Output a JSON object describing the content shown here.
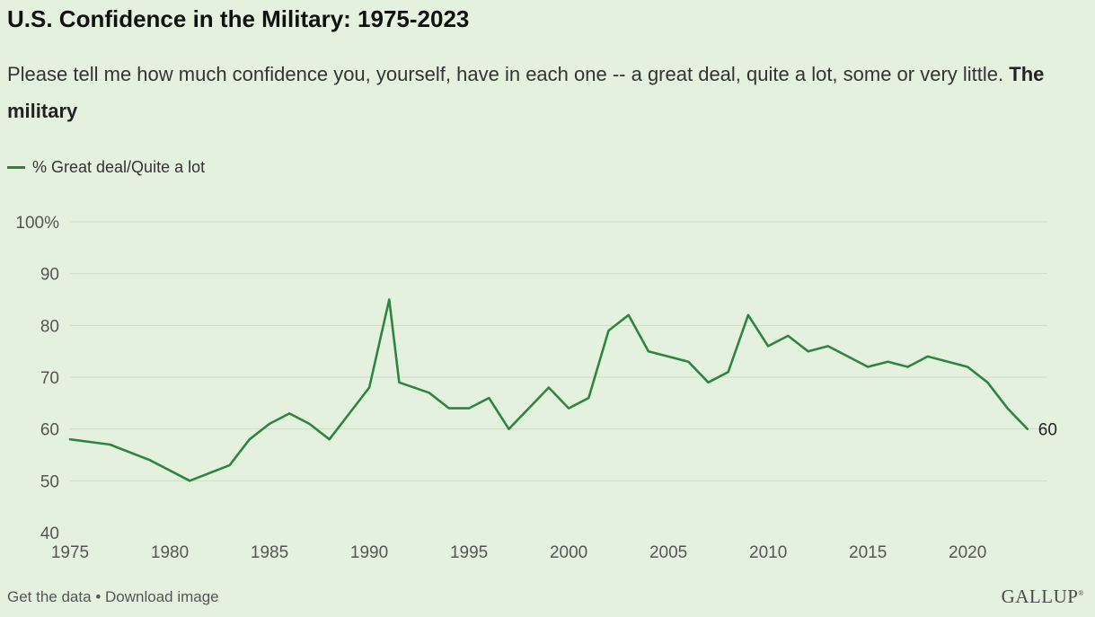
{
  "header": {
    "title": "U.S. Confidence in the Military: 1975-2023",
    "question": "Please tell me how much confidence you, yourself, have in each one -- a great deal, quite a lot, some or very little.",
    "question_bold": "The military"
  },
  "colors": {
    "line": "#2e8540",
    "grid": "#cfdcc8",
    "axis_text": "#555555",
    "background": "#e5f1df"
  },
  "footer": {
    "get_data": "Get the data",
    "separator": "•",
    "download": "Download image",
    "logo": "GALLUP"
  },
  "chart_data": {
    "type": "line",
    "title": "U.S. Confidence in the Military: 1975-2023",
    "xlabel": "",
    "ylabel": "",
    "xlim": [
      1975,
      2024
    ],
    "ylim": [
      40,
      100
    ],
    "x_ticks": [
      1975,
      1980,
      1985,
      1990,
      1995,
      2000,
      2005,
      2010,
      2015,
      2020
    ],
    "y_ticks": [
      40,
      50,
      60,
      70,
      80,
      90,
      100
    ],
    "y_tick_labels": [
      "40",
      "50",
      "60",
      "70",
      "80",
      "90",
      "100%"
    ],
    "grid": true,
    "legend_position": "top-left",
    "series": [
      {
        "name": "% Great deal/Quite a lot",
        "x": [
          1975,
          1977,
          1979,
          1981,
          1983,
          1984,
          1985,
          1986,
          1987,
          1988,
          1990,
          1991,
          1991.5,
          1993,
          1994,
          1995,
          1996,
          1997,
          1999,
          2000,
          2001,
          2002,
          2003,
          2004,
          2006,
          2007,
          2008,
          2009,
          2010,
          2011,
          2012,
          2013,
          2015,
          2016,
          2017,
          2018,
          2020,
          2021,
          2022,
          2023
        ],
        "values": [
          58,
          57,
          54,
          50,
          53,
          58,
          61,
          63,
          61,
          58,
          68,
          85,
          69,
          67,
          64,
          64,
          66,
          60,
          68,
          64,
          66,
          79,
          82,
          75,
          73,
          69,
          71,
          82,
          76,
          78,
          75,
          76,
          72,
          73,
          72,
          74,
          72,
          69,
          64,
          60
        ]
      }
    ],
    "annotations": [
      {
        "label": "60"
      }
    ]
  }
}
